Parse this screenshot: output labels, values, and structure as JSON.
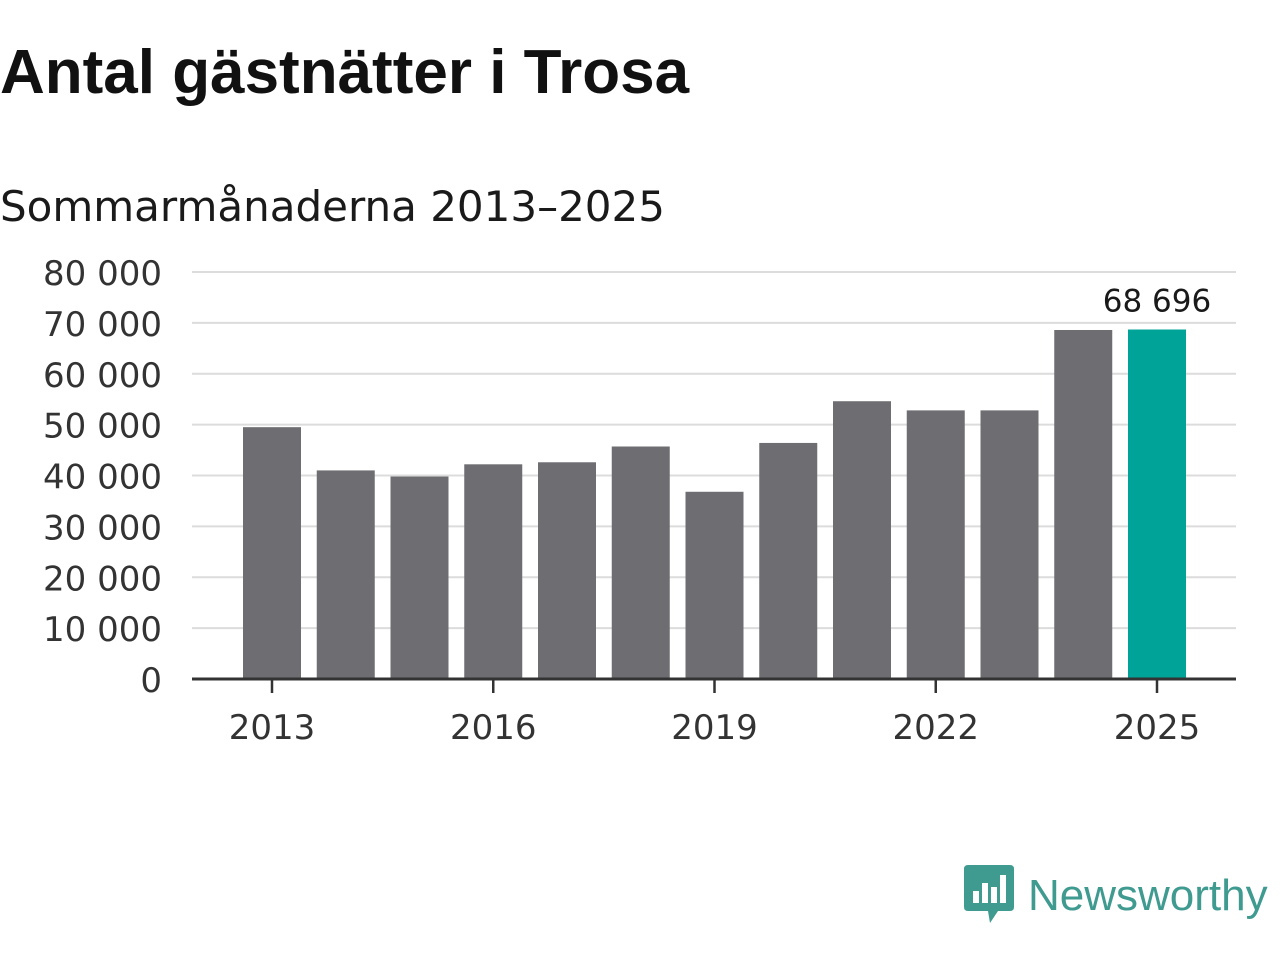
{
  "colors": {
    "bar": "#6e6d72",
    "highlight": "#00a398",
    "grid": "#dcdcdc",
    "axis": "#333333",
    "brand": "#3f9a90"
  },
  "brand": {
    "name": "Newsworthy",
    "icon": "newsworthy-logo-icon"
  },
  "chart_data": {
    "type": "bar",
    "title": "Antal gästnätter i Trosa",
    "subtitle": "Sommarmånaderna 2013–2025",
    "xlabel": "",
    "ylabel": "",
    "categories": [
      "2013",
      "2014",
      "2015",
      "2016",
      "2017",
      "2018",
      "2019",
      "2020",
      "2021",
      "2022",
      "2023",
      "2024",
      "2025"
    ],
    "values": [
      49500,
      41000,
      39800,
      42200,
      42600,
      45700,
      36800,
      46400,
      54600,
      52800,
      52800,
      68600,
      68696
    ],
    "highlight_index": 12,
    "highlight_label": "68 696",
    "x_tick_labels": [
      "2013",
      "2016",
      "2019",
      "2022",
      "2025"
    ],
    "y_tick_labels": [
      "0",
      "10 000",
      "20 000",
      "30 000",
      "40 000",
      "50 000",
      "60 000",
      "70 000",
      "80 000"
    ],
    "y_ticks": [
      0,
      10000,
      20000,
      30000,
      40000,
      50000,
      60000,
      70000,
      80000
    ],
    "ylim": [
      0,
      80000
    ],
    "grid": true,
    "legend": "none"
  }
}
